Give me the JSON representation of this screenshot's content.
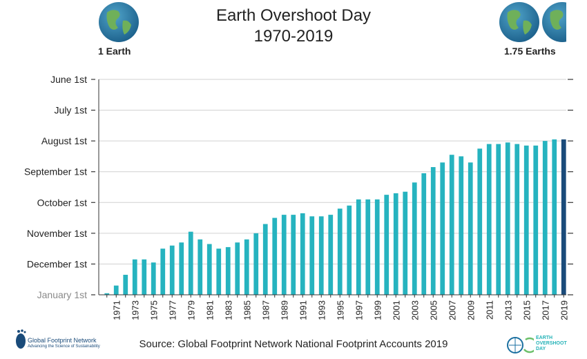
{
  "title_line1": "Earth Overshoot Day",
  "title_line2": "1970-2019",
  "left_label": "1 Earth",
  "right_label": "1.75 Earths",
  "source": "Source: Global Footprint Network National Footprint Accounts 2019",
  "logos": {
    "gfn_name": "Global Footprint Network",
    "gfn_tagline": "Advancing the Science of Sustainability",
    "eod_line1": "EARTH",
    "eod_line2": "OVERSHOOT",
    "eod_line3": "DAY"
  },
  "colors": {
    "bar": "#26b3bf",
    "bar_highlight": "#1a4b7a",
    "grid": "#d0d0d0"
  },
  "chart_data": {
    "type": "bar",
    "title": "Earth Overshoot Day 1970-2019",
    "y_axis": "month",
    "y_ticks": [
      "January 1st",
      "December 1st",
      "November 1st",
      "October 1st",
      "September 1st",
      "August 1st",
      "July 1st",
      "June 1st"
    ],
    "y_range_months": [
      0,
      7
    ],
    "x_tick_labels": [
      "1971",
      "1973",
      "1975",
      "1977",
      "1979",
      "1981",
      "1983",
      "1985",
      "1987",
      "1989",
      "1991",
      "1993",
      "1995",
      "1997",
      "1999",
      "2001",
      "2003",
      "2005",
      "2007",
      "2009",
      "2011",
      "2013",
      "2015",
      "2017",
      "2019"
    ],
    "categories": [
      1970,
      1971,
      1972,
      1973,
      1974,
      1975,
      1976,
      1977,
      1978,
      1979,
      1980,
      1981,
      1982,
      1983,
      1984,
      1985,
      1986,
      1987,
      1988,
      1989,
      1990,
      1991,
      1992,
      1993,
      1994,
      1995,
      1996,
      1997,
      1998,
      1999,
      2000,
      2001,
      2002,
      2003,
      2004,
      2005,
      2006,
      2007,
      2008,
      2009,
      2010,
      2011,
      2012,
      2013,
      2014,
      2015,
      2016,
      2017,
      2018,
      2019
    ],
    "values_months_before_jan1": [
      0.05,
      0.3,
      0.65,
      1.15,
      1.15,
      1.05,
      1.5,
      1.6,
      1.7,
      2.05,
      1.8,
      1.65,
      1.5,
      1.55,
      1.7,
      1.8,
      2.0,
      2.3,
      2.5,
      2.6,
      2.6,
      2.65,
      2.55,
      2.55,
      2.6,
      2.8,
      2.9,
      3.1,
      3.1,
      3.1,
      3.25,
      3.3,
      3.35,
      3.65,
      3.95,
      4.15,
      4.3,
      4.55,
      4.5,
      4.3,
      4.75,
      4.9,
      4.9,
      4.95,
      4.9,
      4.85,
      4.85,
      5.0,
      5.05,
      5.05
    ],
    "highlight": 2019,
    "grid": true
  }
}
